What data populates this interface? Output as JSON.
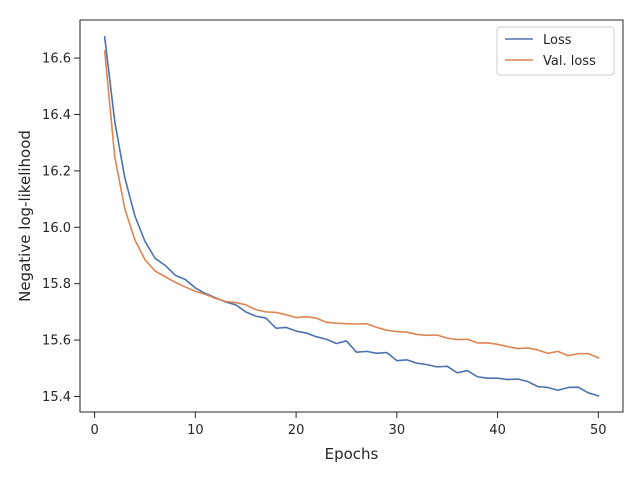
{
  "chart_data": {
    "type": "line",
    "title": "",
    "xlabel": "Epochs",
    "ylabel": "Negative log-likelihood",
    "xlim": [
      -1.45,
      52.45
    ],
    "ylim": [
      15.345,
      16.735
    ],
    "xticks": [
      0,
      10,
      20,
      30,
      40,
      50
    ],
    "yticks": [
      15.4,
      15.6,
      15.8,
      16.0,
      16.2,
      16.4,
      16.6
    ],
    "ytick_labels": [
      "15.4",
      "15.6",
      "15.8",
      "16.0",
      "16.2",
      "16.4",
      "16.6"
    ],
    "legend_position": "top-right",
    "series": [
      {
        "name": "Loss",
        "color": "#4c72b0",
        "x": [
          1,
          2,
          3,
          4,
          5,
          6,
          7,
          8,
          9,
          10,
          11,
          12,
          13,
          14,
          15,
          16,
          17,
          18,
          19,
          20,
          21,
          22,
          23,
          24,
          25,
          26,
          27,
          28,
          29,
          30,
          31,
          32,
          33,
          34,
          35,
          36,
          37,
          38,
          39,
          40,
          41,
          42,
          43,
          44,
          45,
          46,
          47,
          48,
          49,
          50
        ],
        "y": [
          16.675,
          16.375,
          16.175,
          16.04,
          15.95,
          15.89,
          15.865,
          15.83,
          15.815,
          15.785,
          15.765,
          15.75,
          15.735,
          15.725,
          15.7,
          15.685,
          15.678,
          15.642,
          15.645,
          15.632,
          15.625,
          15.612,
          15.603,
          15.588,
          15.597,
          15.557,
          15.56,
          15.553,
          15.556,
          15.527,
          15.53,
          15.518,
          15.513,
          15.505,
          15.507,
          15.484,
          15.492,
          15.47,
          15.465,
          15.465,
          15.46,
          15.462,
          15.453,
          15.435,
          15.432,
          15.422,
          15.432,
          15.433,
          15.413,
          15.402
        ]
      },
      {
        "name": "Val. loss",
        "color": "#dd8452",
        "x": [
          1,
          2,
          3,
          4,
          5,
          6,
          7,
          8,
          9,
          10,
          11,
          12,
          13,
          14,
          15,
          16,
          17,
          18,
          19,
          20,
          21,
          22,
          23,
          24,
          25,
          26,
          27,
          28,
          29,
          30,
          31,
          32,
          33,
          34,
          35,
          36,
          37,
          38,
          39,
          40,
          41,
          42,
          43,
          44,
          45,
          46,
          47,
          48,
          49,
          50
        ],
        "y": [
          16.625,
          16.25,
          16.065,
          15.955,
          15.885,
          15.845,
          15.825,
          15.805,
          15.788,
          15.773,
          15.762,
          15.748,
          15.737,
          15.733,
          15.725,
          15.708,
          15.7,
          15.698,
          15.69,
          15.68,
          15.683,
          15.678,
          15.663,
          15.66,
          15.658,
          15.657,
          15.658,
          15.645,
          15.635,
          15.63,
          15.628,
          15.62,
          15.617,
          15.618,
          15.607,
          15.602,
          15.603,
          15.59,
          15.59,
          15.585,
          15.577,
          15.57,
          15.572,
          15.565,
          15.553,
          15.56,
          15.545,
          15.552,
          15.552,
          15.537
        ]
      }
    ]
  }
}
